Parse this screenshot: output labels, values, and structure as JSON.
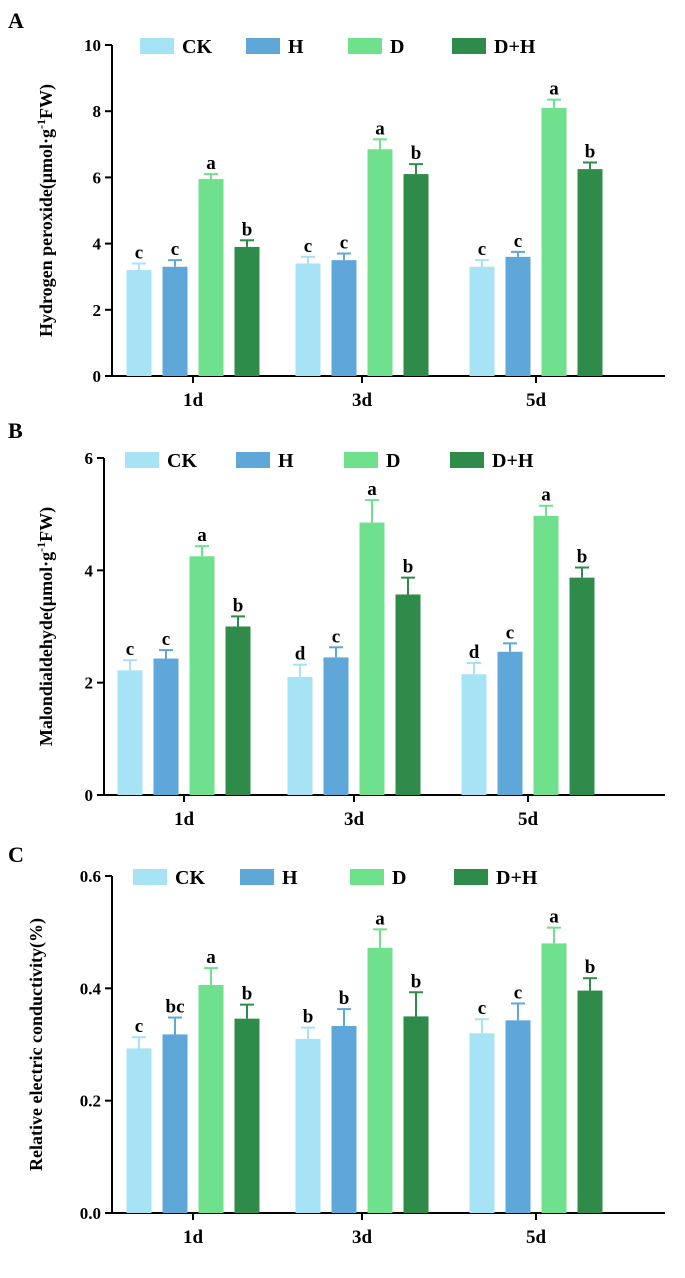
{
  "chart_data": [
    {
      "type": "bar",
      "panel": "A",
      "ylabel": "Hydrogen peroxide(μmol·g·FW)",
      "ylabel_superscript": "-1",
      "ylabel_parts": [
        "Hydrogen peroxide(μmol·g",
        "-1",
        "FW)"
      ],
      "categories": [
        "1d",
        "3d",
        "5d"
      ],
      "ylim": [
        0,
        10
      ],
      "yticks": [
        "0",
        "2",
        "4",
        "6",
        "8",
        "10"
      ],
      "series": [
        {
          "name": "CK",
          "color": "#a5e3f5",
          "values": [
            3.2,
            3.4,
            3.3
          ],
          "errors": [
            0.2,
            0.2,
            0.2
          ],
          "letters": [
            "c",
            "c",
            "c"
          ]
        },
        {
          "name": "H",
          "color": "#5fa7d9",
          "values": [
            3.3,
            3.5,
            3.6
          ],
          "errors": [
            0.2,
            0.2,
            0.15
          ],
          "letters": [
            "c",
            "c",
            "c"
          ]
        },
        {
          "name": "D",
          "color": "#6fe08c",
          "values": [
            5.95,
            6.85,
            8.1
          ],
          "errors": [
            0.15,
            0.3,
            0.25
          ],
          "letters": [
            "a",
            "a",
            "a"
          ]
        },
        {
          "name": "D+H",
          "color": "#2e8b4a",
          "values": [
            3.9,
            6.1,
            6.25
          ],
          "errors": [
            0.2,
            0.3,
            0.2
          ],
          "letters": [
            "b",
            "b",
            "b"
          ]
        }
      ]
    },
    {
      "type": "bar",
      "panel": "B",
      "ylabel": "Malondialdehyde(μmol·g·FW)",
      "ylabel_superscript": "-1",
      "ylabel_parts": [
        "Malondialdehyde(μmol·g",
        "-1",
        "FW)"
      ],
      "categories": [
        "1d",
        "3d",
        "5d"
      ],
      "ylim": [
        0,
        6
      ],
      "yticks": [
        "0",
        "2",
        "4",
        "6"
      ],
      "series": [
        {
          "name": "CK",
          "color": "#a5e3f5",
          "values": [
            2.22,
            2.1,
            2.15
          ],
          "errors": [
            0.18,
            0.22,
            0.2
          ],
          "letters": [
            "c",
            "d",
            "d"
          ]
        },
        {
          "name": "H",
          "color": "#5fa7d9",
          "values": [
            2.43,
            2.45,
            2.55
          ],
          "errors": [
            0.15,
            0.18,
            0.15
          ],
          "letters": [
            "c",
            "c",
            "c"
          ]
        },
        {
          "name": "D",
          "color": "#6fe08c",
          "values": [
            4.25,
            4.85,
            4.97
          ],
          "errors": [
            0.18,
            0.4,
            0.18
          ],
          "letters": [
            "a",
            "a",
            "a"
          ]
        },
        {
          "name": "D+H",
          "color": "#2e8b4a",
          "values": [
            3.0,
            3.57,
            3.87
          ],
          "errors": [
            0.18,
            0.3,
            0.18
          ],
          "letters": [
            "b",
            "b",
            "b"
          ]
        }
      ]
    },
    {
      "type": "bar",
      "panel": "C",
      "ylabel": "Relative electric conductivity(%)",
      "categories": [
        "1d",
        "3d",
        "5d"
      ],
      "ylim": [
        0,
        0.6
      ],
      "yticks": [
        "0.0",
        "0.2",
        "0.4",
        "0.6"
      ],
      "series": [
        {
          "name": "CK",
          "color": "#a5e3f5",
          "values": [
            0.293,
            0.31,
            0.32
          ],
          "errors": [
            0.02,
            0.02,
            0.025
          ],
          "letters": [
            "c",
            "b",
            "c"
          ]
        },
        {
          "name": "H",
          "color": "#5fa7d9",
          "values": [
            0.318,
            0.333,
            0.343
          ],
          "errors": [
            0.03,
            0.03,
            0.03
          ],
          "letters": [
            "bc",
            "b",
            "c"
          ]
        },
        {
          "name": "D",
          "color": "#6fe08c",
          "values": [
            0.406,
            0.472,
            0.48
          ],
          "errors": [
            0.03,
            0.033,
            0.028
          ],
          "letters": [
            "a",
            "a",
            "a"
          ]
        },
        {
          "name": "D+H",
          "color": "#2e8b4a",
          "values": [
            0.346,
            0.35,
            0.396
          ],
          "errors": [
            0.025,
            0.043,
            0.022
          ],
          "letters": [
            "b",
            "b",
            "b"
          ]
        }
      ]
    }
  ]
}
